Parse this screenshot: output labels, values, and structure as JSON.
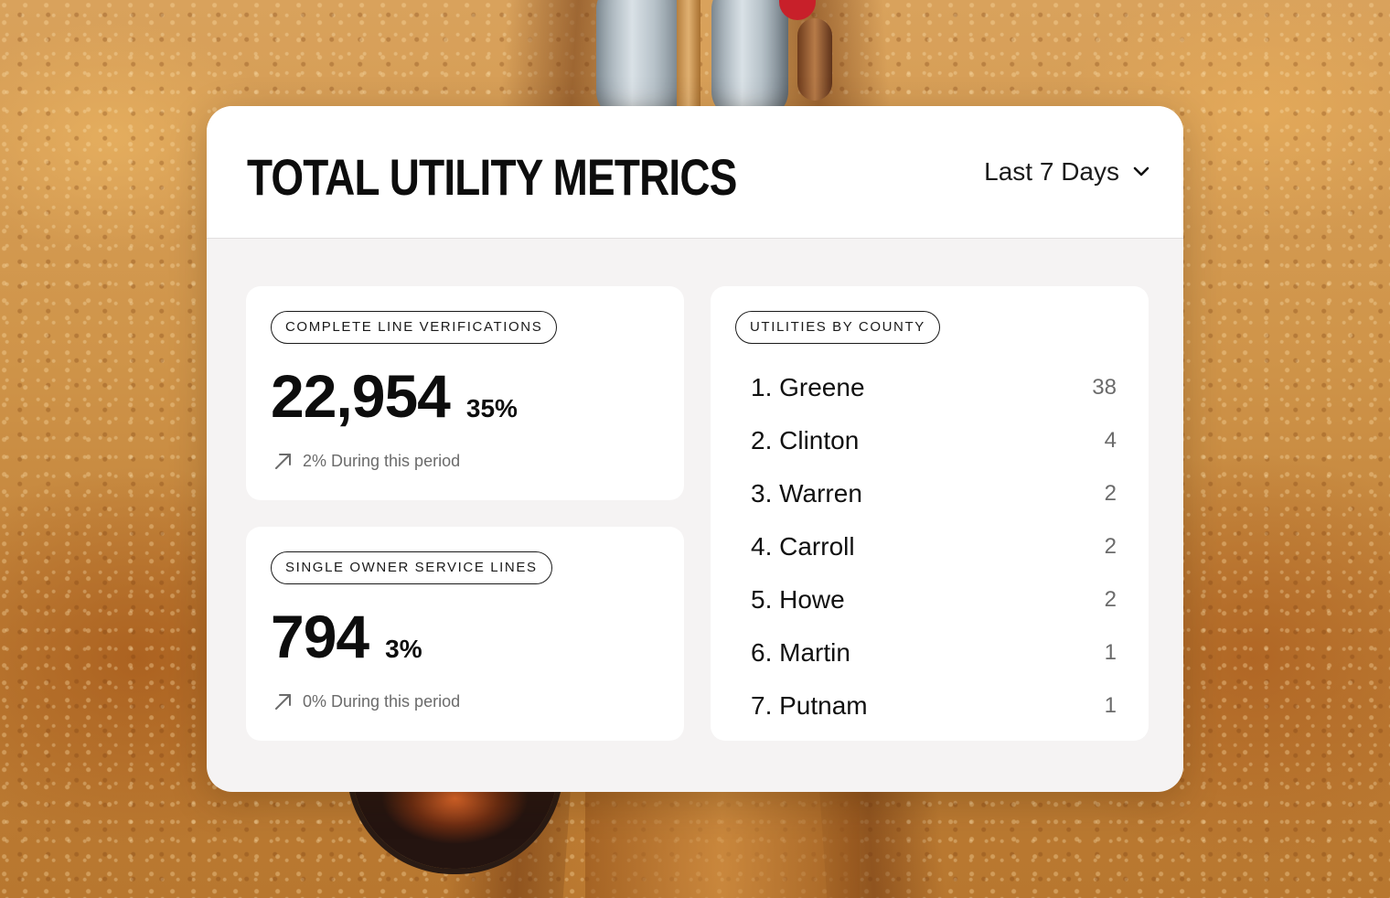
{
  "header": {
    "title": "TOTAL UTILITY METRICS",
    "period": {
      "selected": "Last 7 Days",
      "icon": "chevron-down-icon"
    }
  },
  "metrics": [
    {
      "label": "COMPLETE LINE VERIFICATIONS",
      "value": "22,954",
      "percent": "35%",
      "trend": {
        "icon": "arrow-up-right-icon",
        "text": "2% During this period"
      }
    },
    {
      "label": "SINGLE OWNER SERVICE LINES",
      "value": "794",
      "percent": "3%",
      "trend": {
        "icon": "arrow-up-right-icon",
        "text": "0% During this period"
      }
    }
  ],
  "counties": {
    "label": "UTILITIES BY COUNTY",
    "items": [
      {
        "name": "1. Greene",
        "count": "38"
      },
      {
        "name": "2. Clinton",
        "count": "4"
      },
      {
        "name": "3. Warren",
        "count": "2"
      },
      {
        "name": "4. Carroll",
        "count": "2"
      },
      {
        "name": "5. Howe",
        "count": "2"
      },
      {
        "name": "6. Martin",
        "count": "1"
      },
      {
        "name": "7. Putnam",
        "count": "1"
      }
    ]
  },
  "colors": {
    "card_bg": "#f5f3f3",
    "panel_bg": "#ffffff",
    "text_primary": "#0d0d0d",
    "text_muted": "#6b6b6b"
  }
}
